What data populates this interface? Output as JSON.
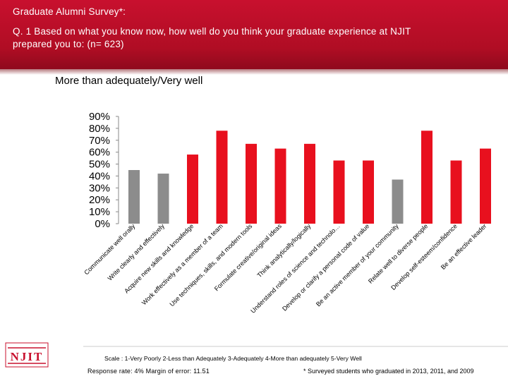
{
  "header": {
    "title_line1": "Graduate Alumni Survey*:",
    "title_line2": "Q. 1 Based on what you know now, how well do you think your graduate experience at NJIT",
    "title_line3": "prepared you to: (n= 623)"
  },
  "subheader": "More than adequately/Very well",
  "colors": {
    "brand_red": "#c8102e",
    "bar_red": "#e8101e",
    "bar_gray": "#8c8c8c"
  },
  "chart_data": {
    "type": "bar",
    "categories": [
      "Communicate well orally",
      "Write clearly and effectively",
      "Acquire new skills and knowledge",
      "Work effectively as a member of a team",
      "Use techniques, skills, and modern tools",
      "Formulate creative/original ideas",
      "Think analytically/logically",
      "Understand roles of science and technolo…",
      "Develop or clarify a personal code of value",
      "Be an active member of your community",
      "Relate well to diverse people",
      "Develop self-esteem/confidence",
      "Be an effective leader"
    ],
    "values": [
      45,
      42,
      58,
      78,
      67,
      63,
      67,
      53,
      53,
      37,
      78,
      53,
      63
    ],
    "bar_colors": [
      "gray",
      "gray",
      "red",
      "red",
      "red",
      "red",
      "red",
      "red",
      "red",
      "gray",
      "red",
      "red",
      "red"
    ],
    "ytick_labels": [
      "0%",
      "10%",
      "20%",
      "30%",
      "40%",
      "50%",
      "60%",
      "70%",
      "80%",
      "90%"
    ],
    "ylim": [
      0,
      90
    ],
    "grid": false,
    "legend": "none"
  },
  "footer": {
    "logo_text": "NJIT",
    "scale": "Scale : 1-Very Poorly 2-Less than Adequately 3-Adequately 4-More than adequately 5-Very Well",
    "response": "Response rate: 4%  Margin of error: 11.51",
    "note": "* Surveyed students who graduated in 2013, 2011, and 2009"
  }
}
